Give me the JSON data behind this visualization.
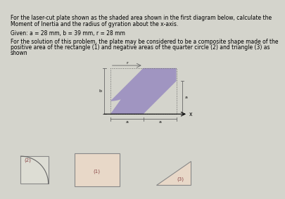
{
  "title_line1": "For the laser-cut plate shown as the shaded area shown in the first diagram below, calculate the",
  "title_line2": "Moment of Inertia and the radius of gyration about the x-axis.",
  "given_text": "Given: a = 28 mm, b = 39 mm, r = 28 mm",
  "sol_line1": "For the solution of this problem, the plate may be considered to be a composite shape made of the",
  "sol_line2": "positive area of the rectangle (1) and negative areas of the quarter circle (2) and triangle (3) as",
  "sol_line3": "shown",
  "bg_color": "#d4d4cc",
  "plate_fill": "#9b8fc0",
  "dim_color": "#666666",
  "shape_fill_rect": "#e8d8c8",
  "shape_fill_qc": "#ddddd4",
  "shape_fill_tri": "#e8d8c8",
  "label_color": "#884444",
  "text_fontsize": 5.5,
  "label_fontsize": 5.0,
  "dim_fontsize": 4.5
}
